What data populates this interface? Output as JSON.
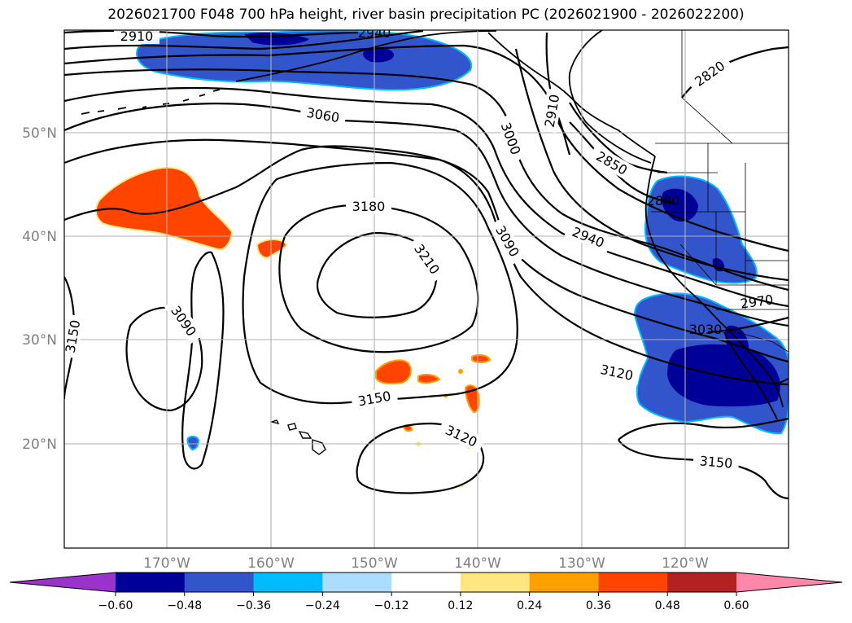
{
  "title": "2026021700 F048 700 hPa height, river basin precipitation PC (2026021900 - 2026022200)",
  "map": {
    "lon_range": [
      -180,
      -110
    ],
    "lat_range": [
      10,
      60
    ],
    "gridlines": true,
    "lat_labels": [
      "50°N",
      "40°N",
      "30°N",
      "20°N"
    ],
    "lon_labels": [
      "170°W",
      "160°W",
      "150°W",
      "140°W",
      "130°W",
      "120°W"
    ]
  },
  "contours": {
    "variable": "700 hPa height",
    "labels": [
      {
        "text": "2910",
        "angle": 0
      },
      {
        "text": "2940",
        "angle": 0
      },
      {
        "text": "3060",
        "angle": 10
      },
      {
        "text": "3000",
        "angle": 70
      },
      {
        "text": "2910",
        "angle": -80
      },
      {
        "text": "2820",
        "angle": -35
      },
      {
        "text": "2850",
        "angle": 30
      },
      {
        "text": "2880",
        "angle": 0
      },
      {
        "text": "3180",
        "angle": 0
      },
      {
        "text": "3210",
        "angle": 55
      },
      {
        "text": "3090",
        "angle": 60
      },
      {
        "text": "2940",
        "angle": 22
      },
      {
        "text": "2970",
        "angle": -8
      },
      {
        "text": "3030",
        "angle": 0
      },
      {
        "text": "3090",
        "angle": 55
      },
      {
        "text": "3150",
        "angle": -80
      },
      {
        "text": "3120",
        "angle": 12
      },
      {
        "text": "3150",
        "angle": -10
      },
      {
        "text": "3120",
        "angle": 25
      },
      {
        "text": "3150",
        "angle": 5
      }
    ]
  },
  "colorbar": {
    "ticks": [
      "−0.60",
      "−0.48",
      "−0.36",
      "−0.24",
      "−0.12",
      "0.12",
      "0.24",
      "0.36",
      "0.48",
      "0.60"
    ],
    "colors": [
      "#9933cc",
      "#000099",
      "#3355cc",
      "#00bbff",
      "#aaddff",
      "#ffffff",
      "#ffe680",
      "#ffa000",
      "#ff4400",
      "#b22222",
      "#ff88aa"
    ],
    "extend": "both"
  }
}
